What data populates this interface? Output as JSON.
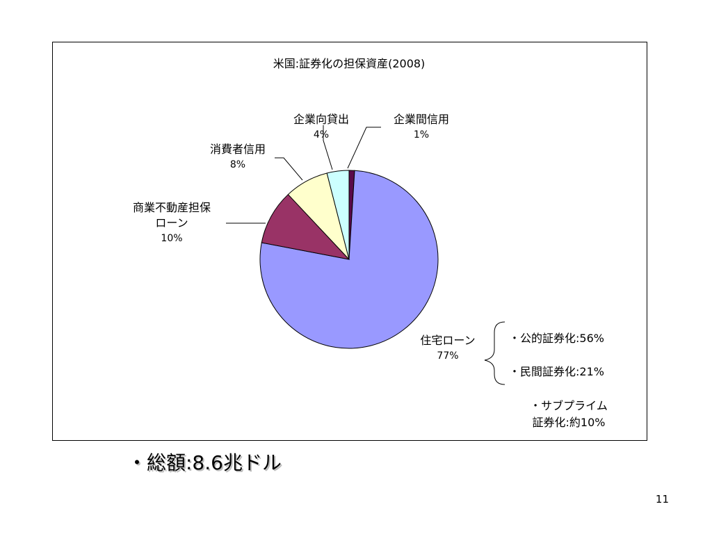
{
  "chart_data": {
    "type": "pie",
    "title": "米国:証券化の担保資産(2008)",
    "slices": [
      {
        "label": "企業間信用",
        "value": 1,
        "value_label": "1%",
        "color": "#5a0a4a"
      },
      {
        "label": "住宅ローン",
        "value": 77,
        "value_label": "77%",
        "color": "#9999ff"
      },
      {
        "label": "商業不動産担保ローン",
        "display_lines": [
          "商業不動産担保",
          "ローン"
        ],
        "value": 10,
        "value_label": "10%",
        "color": "#993366"
      },
      {
        "label": "消費者信用",
        "value": 8,
        "value_label": "8%",
        "color": "#ffffcc"
      },
      {
        "label": "企業向貸出",
        "value": 4,
        "value_label": "4%",
        "color": "#ccffff"
      }
    ],
    "annotations": [
      "・公的証券化:56%",
      "・民間証券化:21%",
      "・サブプライム",
      "証券化:約10%"
    ]
  },
  "footer": {
    "total": "・総額:8.6兆ドル",
    "page_number": "11"
  }
}
